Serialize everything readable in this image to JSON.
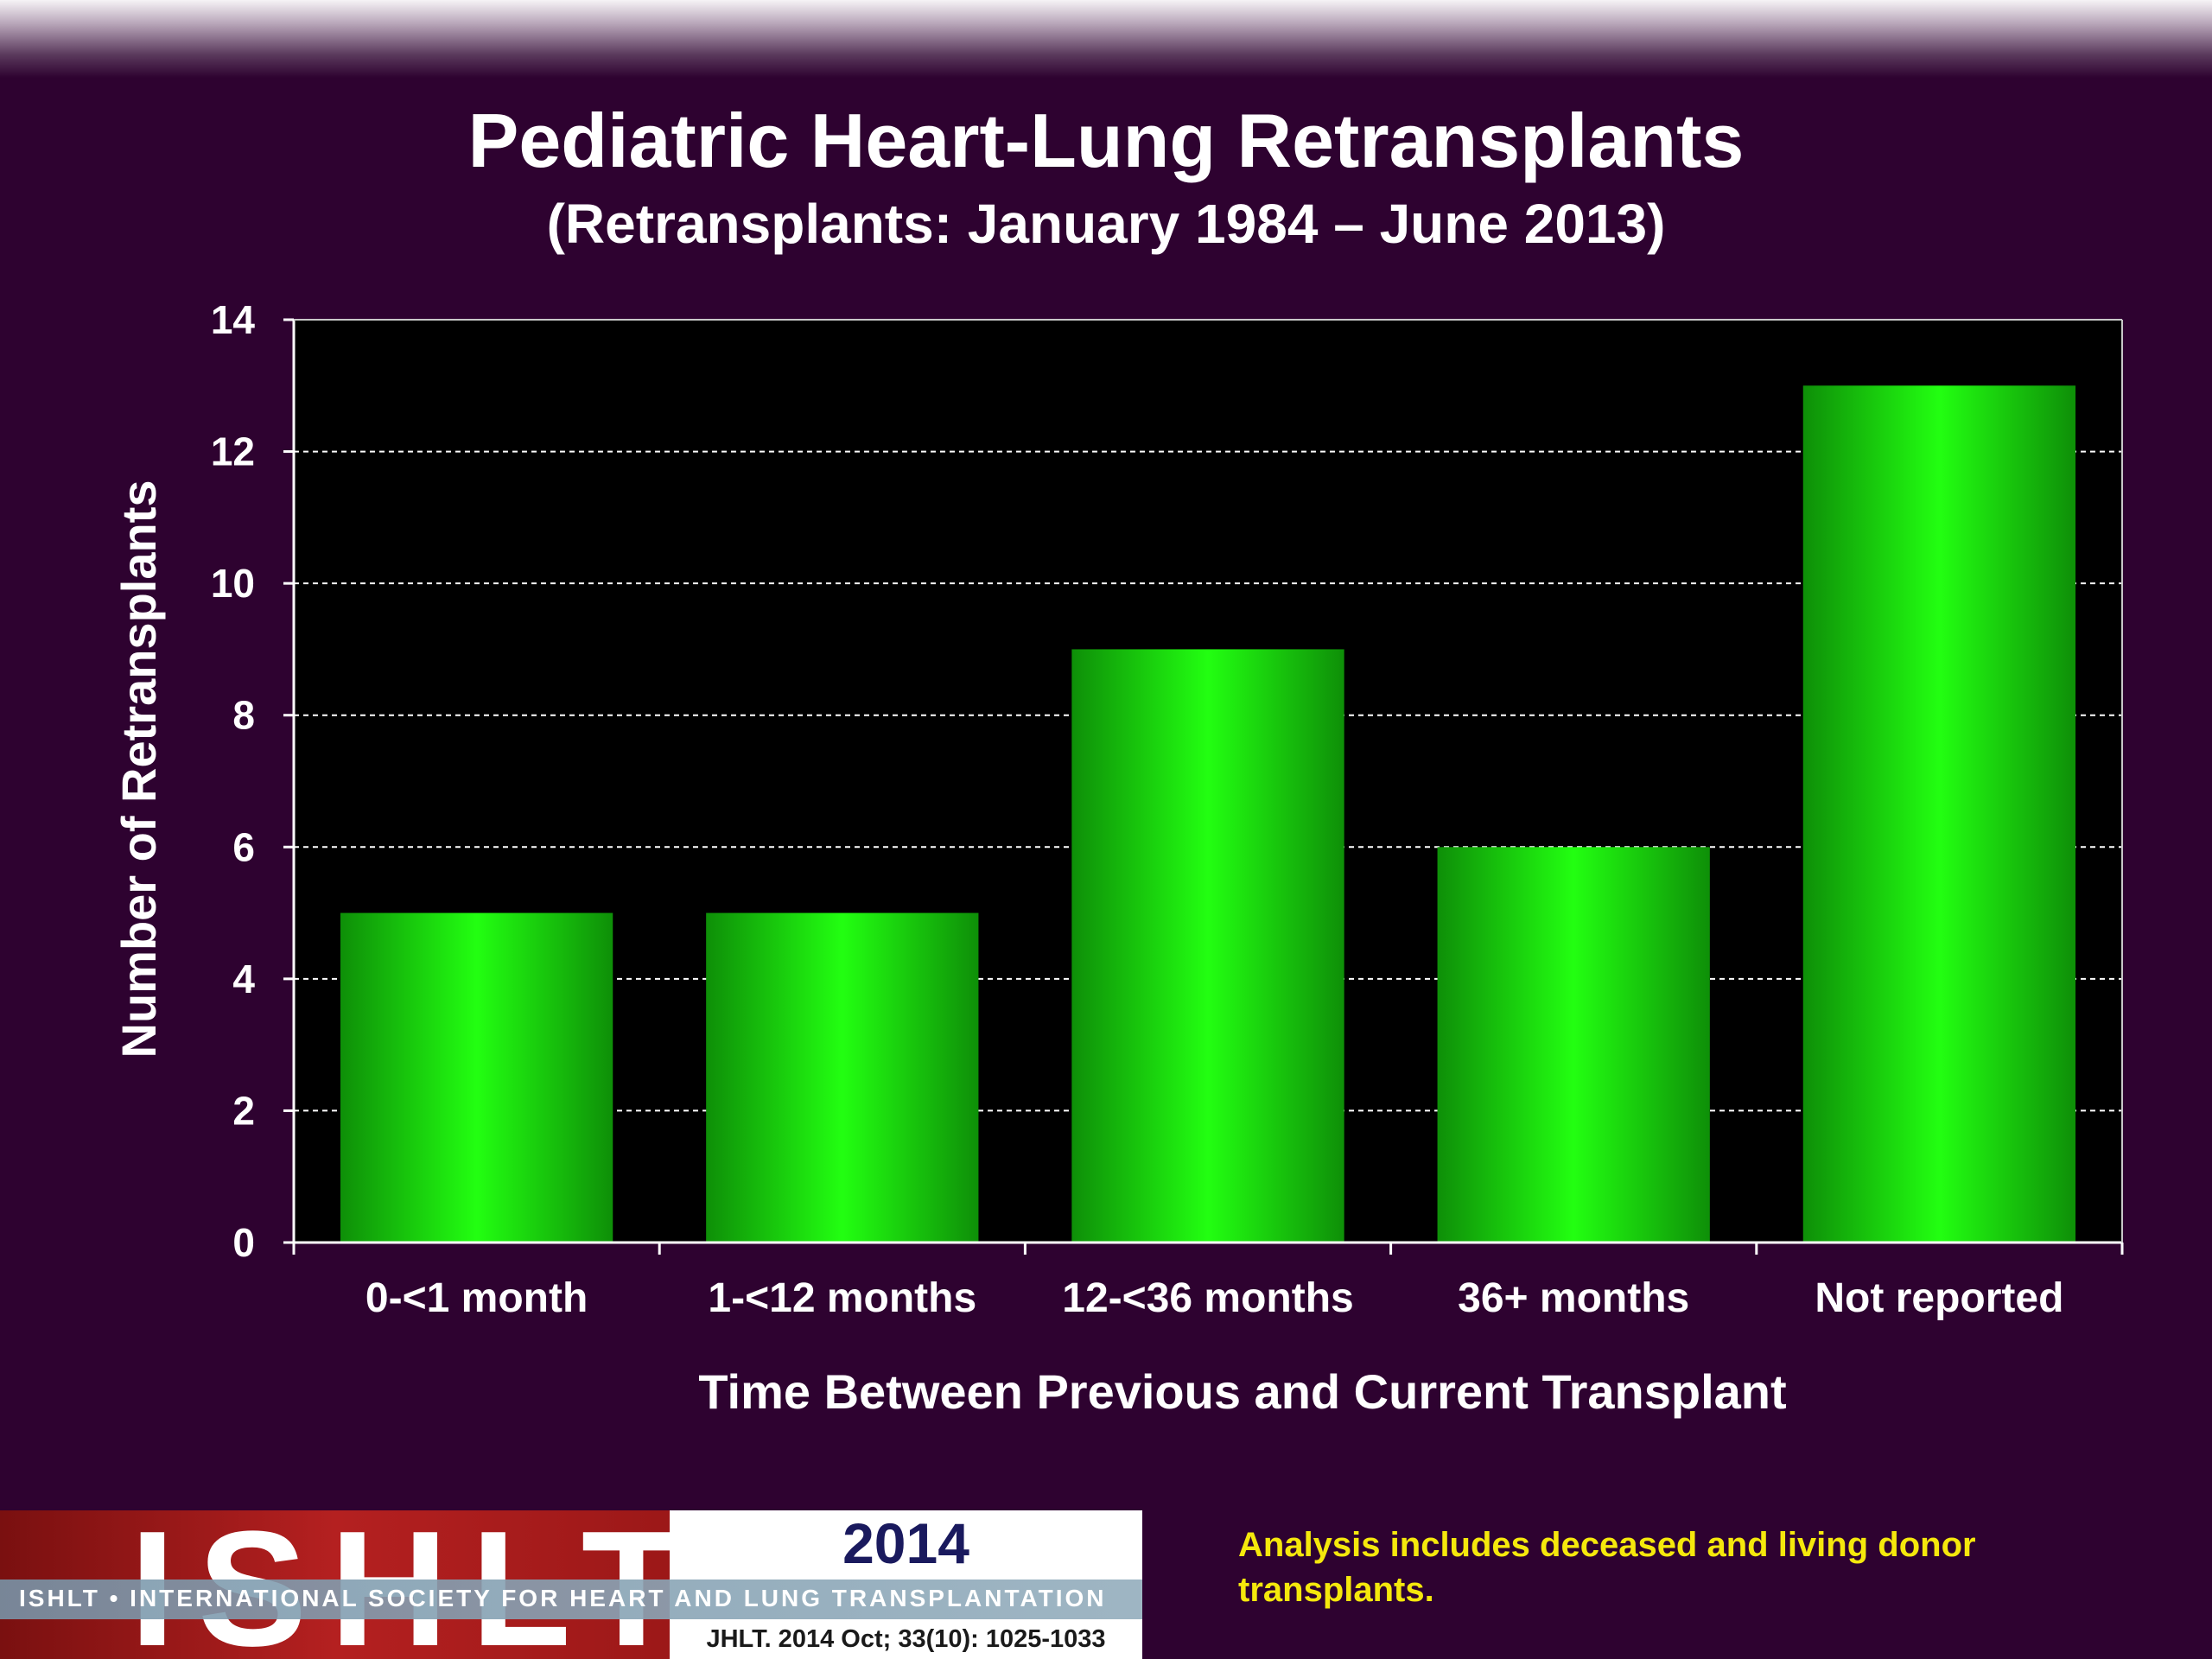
{
  "chart_data": {
    "type": "bar",
    "title": "Pediatric Heart-Lung Retransplants",
    "subtitle": "(Retransplants: January 1984 – June 2013)",
    "xlabel": "Time Between Previous and Current Transplant",
    "ylabel": "Number of Retransplants",
    "categories": [
      "0-<1 month",
      "1-<12 months",
      "12-<36 months",
      "36+ months",
      "Not reported"
    ],
    "values": [
      5,
      5,
      9,
      6,
      13
    ],
    "ylim": [
      0,
      14
    ],
    "yticks": [
      "0",
      "2",
      "4",
      "6",
      "8",
      "10",
      "12",
      "14"
    ],
    "grid": true,
    "colors": {
      "bar": "#22ff11",
      "bar_dark": "#0e8f08",
      "plot_bg": "#000000",
      "grid": "#ffffff"
    }
  },
  "footer": {
    "note": "Analysis includes deceased and living donor transplants."
  },
  "logo": {
    "acronym": "ISHLT",
    "year": "2014",
    "society": "ISHLT • INTERNATIONAL SOCIETY FOR HEART AND LUNG TRANSPLANTATION",
    "citation": "JHLT. 2014 Oct; 33(10): 1025-1033"
  }
}
